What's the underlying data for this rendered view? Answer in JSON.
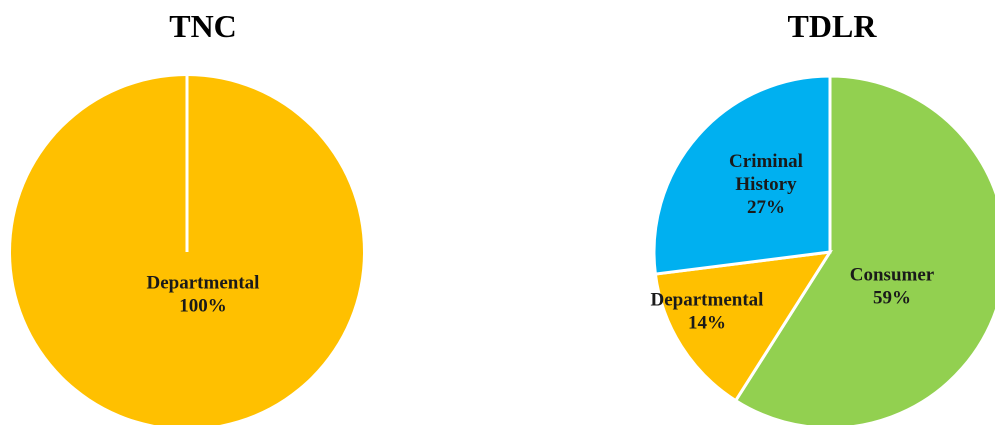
{
  "chart_data": [
    {
      "type": "pie",
      "title": "TNC",
      "slices": [
        {
          "name": "Departmental",
          "value": 100,
          "label_lines": [
            "Departmental",
            "100%"
          ],
          "color": "#FFC000"
        }
      ]
    },
    {
      "type": "pie",
      "title": "TDLR",
      "slices": [
        {
          "name": "Consumer",
          "value": 59,
          "label_lines": [
            "Consumer",
            "59%"
          ],
          "color": "#92D050"
        },
        {
          "name": "Departmental",
          "value": 14,
          "label_lines": [
            "Departmental",
            "14%"
          ],
          "color": "#FFC000"
        },
        {
          "name": "Criminal History",
          "value": 27,
          "label_lines": [
            "Criminal",
            "History",
            "27%"
          ],
          "color": "#00B0F0"
        }
      ]
    }
  ]
}
